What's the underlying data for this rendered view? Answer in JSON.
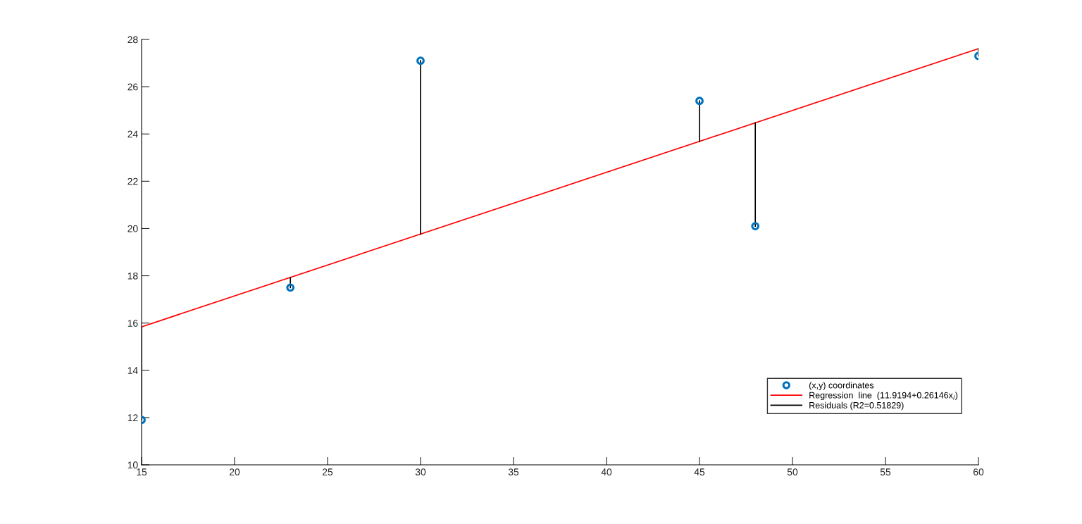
{
  "chart_data": {
    "type": "scatter",
    "x": [
      15,
      23,
      30,
      45,
      48,
      60
    ],
    "series": [
      {
        "name": "(x,y) coordinates",
        "marker": "circle",
        "color": "#0072bd",
        "values": [
          11.9,
          17.5,
          27.1,
          25.4,
          20.1,
          27.3
        ]
      },
      {
        "name": "Regression  line  (11.9194+0.26146x$_{i}$)",
        "type": "line",
        "marker": "none",
        "color": "#ff0000",
        "x": [
          15,
          60
        ],
        "values": [
          15.84,
          27.61
        ]
      },
      {
        "name": "Residuals (R2=0.51829)",
        "type": "line",
        "marker": "none",
        "color": "#000000",
        "x": [
          15,
          15,
          null,
          23,
          23,
          null,
          30,
          30,
          null,
          45,
          45,
          null,
          48,
          48,
          null,
          60,
          60
        ],
        "values": [
          11.9,
          15.84,
          null,
          17.5,
          17.93,
          null,
          27.1,
          19.76,
          null,
          25.4,
          23.68,
          null,
          20.1,
          24.47,
          null,
          27.3,
          27.61
        ]
      }
    ],
    "xlim": [
      15,
      60
    ],
    "xticks": [
      15,
      20,
      25,
      30,
      35,
      40,
      45,
      50,
      55,
      60
    ],
    "ylim": [
      10,
      28
    ],
    "yticks": [
      10,
      12,
      14,
      16,
      18,
      20,
      22,
      24,
      26,
      28
    ],
    "grid": false,
    "legend": "bottom right"
  }
}
